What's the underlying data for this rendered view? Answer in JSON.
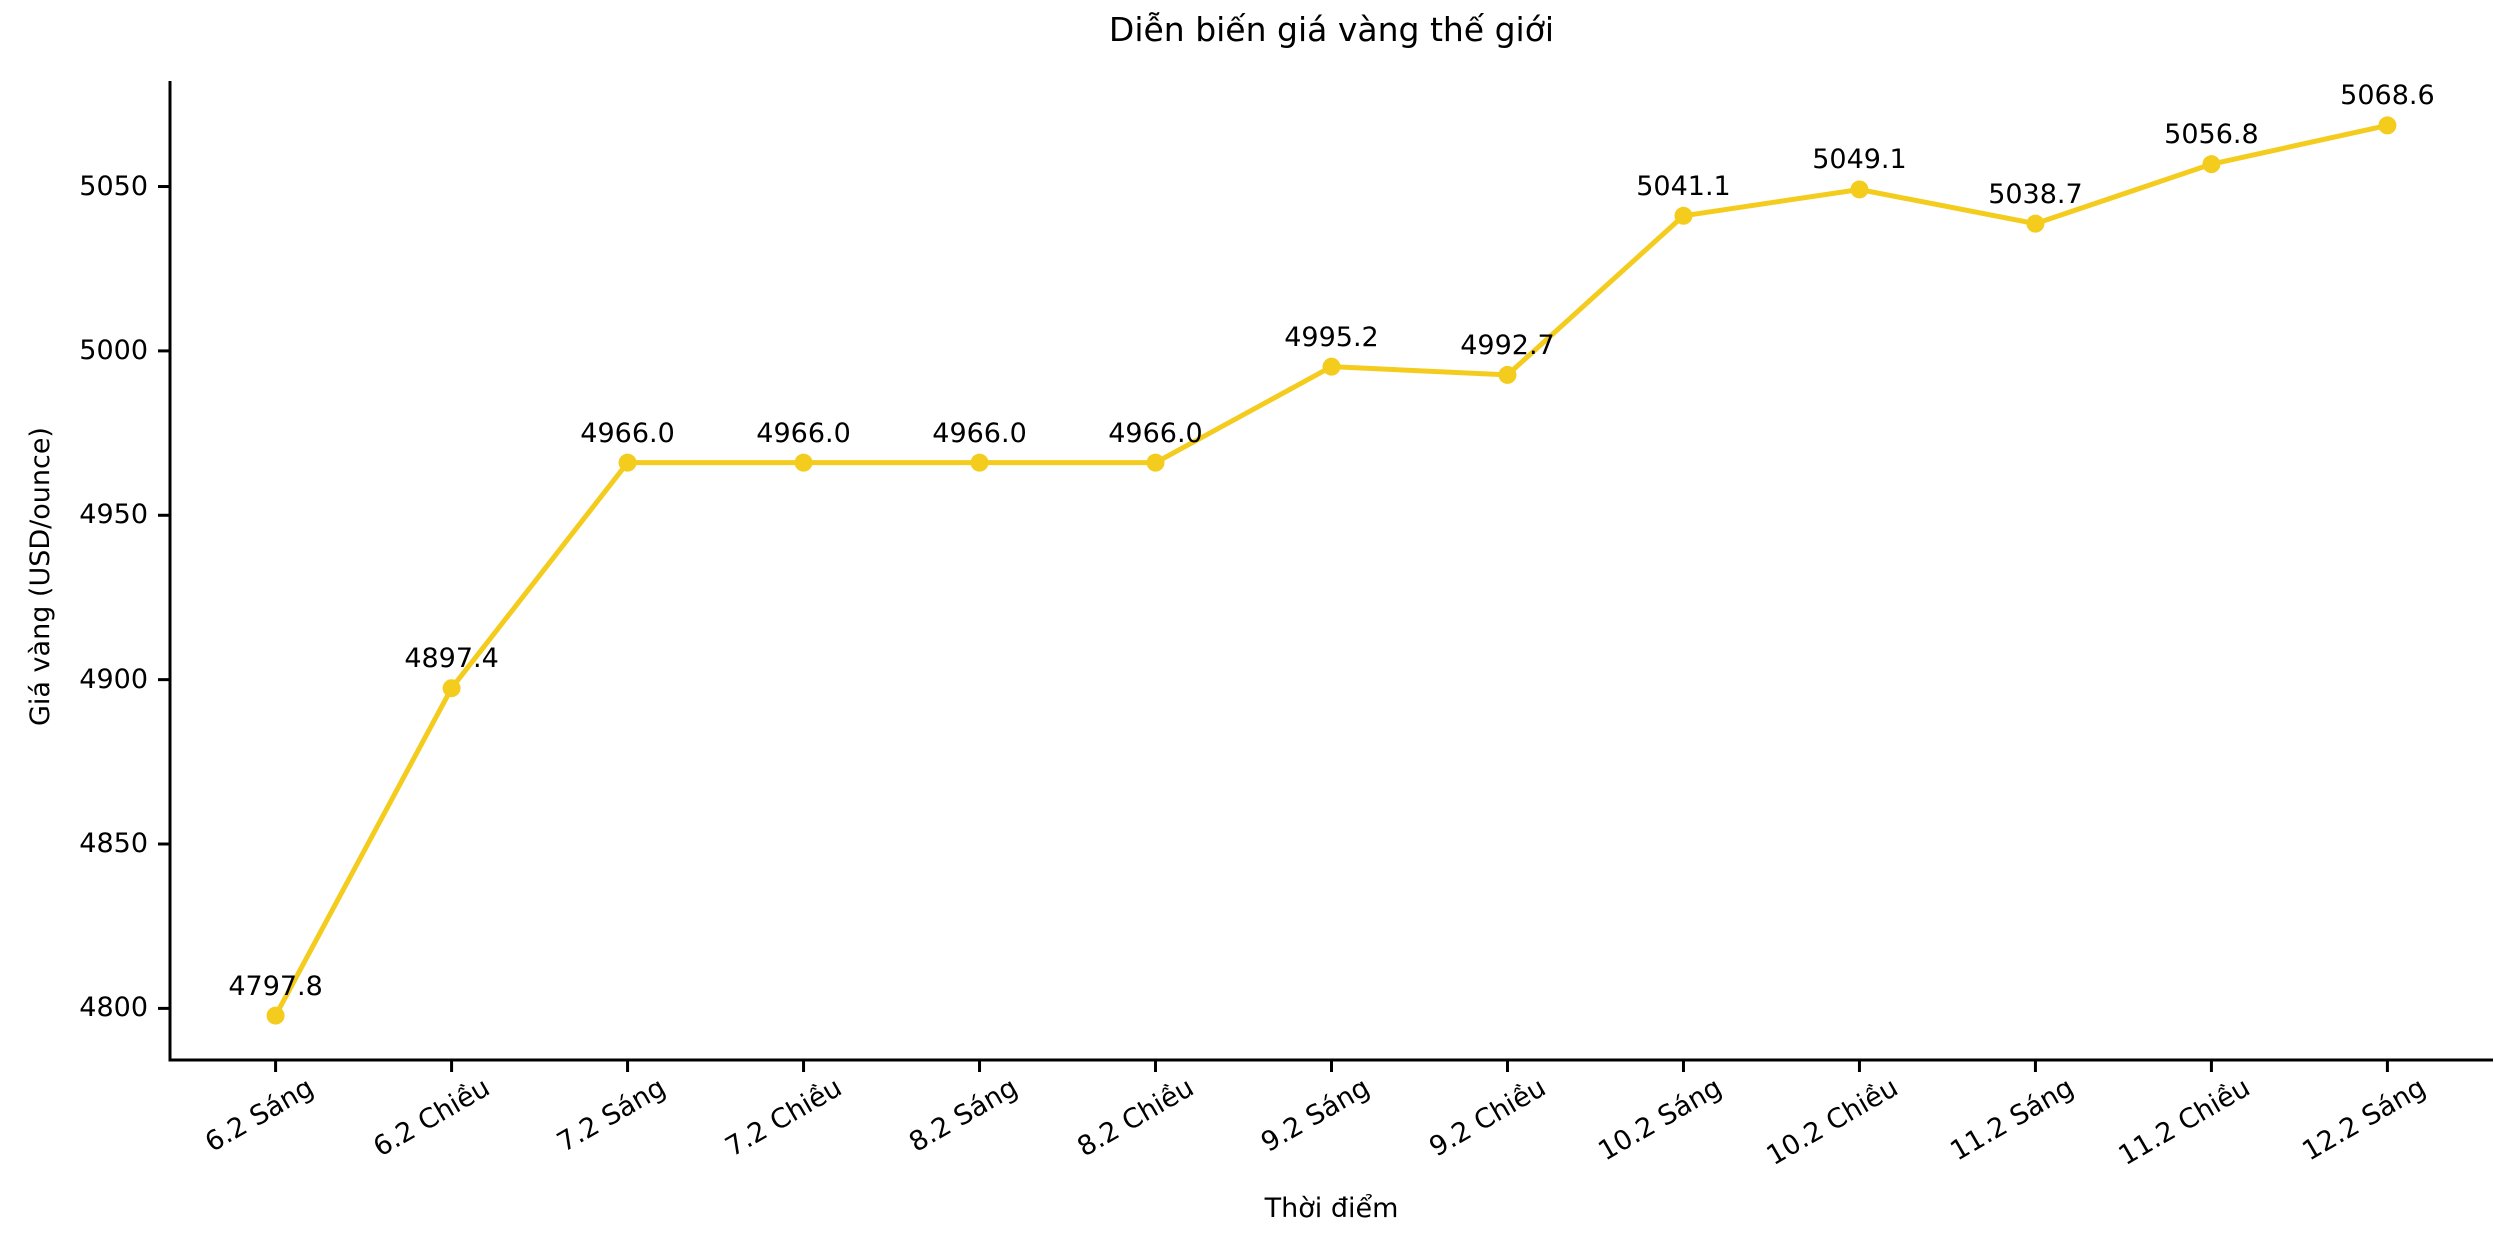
{
  "chart_data": {
    "type": "line",
    "title": "Diễn biến giá vàng thế giới",
    "xlabel": "Thời điểm",
    "ylabel": "Giá vàng (USD/ounce)",
    "categories": [
      "6.2 Sáng",
      "6.2 Chiều",
      "7.2 Sáng",
      "7.2 Chiều",
      "8.2 Sáng",
      "8.2 Chiều",
      "9.2 Sáng",
      "9.2 Chiều",
      "10.2 Sáng",
      "10.2 Chiều",
      "11.2 Sáng",
      "11.2 Chiều",
      "12.2 Sáng"
    ],
    "values": [
      4797.8,
      4897.4,
      4966.0,
      4966.0,
      4966.0,
      4966.0,
      4995.2,
      4992.7,
      5041.1,
      5049.1,
      5038.7,
      5056.8,
      5068.6
    ],
    "value_labels": [
      "4797.8",
      "4897.4",
      "4966.0",
      "4966.0",
      "4966.0",
      "4966.0",
      "4995.2",
      "4992.7",
      "5041.1",
      "5049.1",
      "5038.7",
      "5056.8",
      "5068.6"
    ],
    "yticks": [
      4800,
      4850,
      4900,
      4950,
      5000,
      5050
    ],
    "ylim": [
      4784.3,
      5082.1
    ],
    "xlim": [
      -0.6,
      12.6
    ],
    "xtick_rotation_deg": 30,
    "grid": false,
    "legend_position": "none",
    "marker": "circle",
    "colors": {
      "line": "#F4CC1E",
      "marker": "#F4CC1E",
      "text": "#000000",
      "axis": "#000000",
      "background": "#FFFFFF"
    }
  }
}
